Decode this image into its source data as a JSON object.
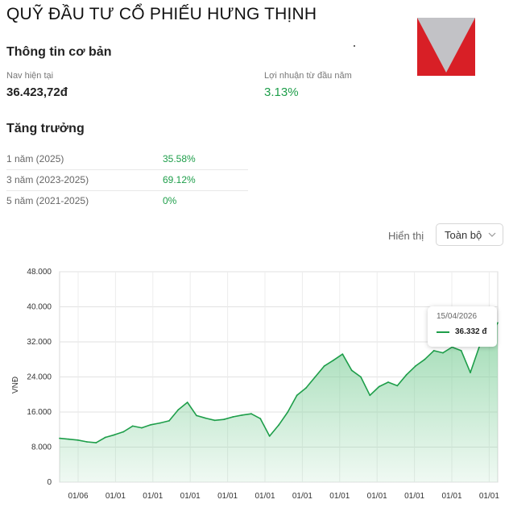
{
  "fund": {
    "title": "QUỸ ĐẦU TƯ CỔ PHIẾU HƯNG THỊNH",
    "logo_colors": {
      "gray": "#c2c2c6",
      "red": "#d81f26"
    }
  },
  "basic": {
    "heading": "Thông tin cơ bản",
    "nav_label": "Nav hiện tại",
    "nav_value": "36.423,72đ",
    "ytd_label": "Lợi nhuận từ đầu năm",
    "ytd_value": "3.13%"
  },
  "growth": {
    "heading": "Tăng trưởng",
    "rows": [
      {
        "label": "1 năm (2025)",
        "value": "35.58%"
      },
      {
        "label": "3 năm (2023-2025)",
        "value": "69.12%"
      },
      {
        "label": "5 năm (2021-2025)",
        "value": "0%"
      }
    ]
  },
  "controls": {
    "show_label": "Hiển thị",
    "range_value": "Toàn bộ",
    "chevron_icon": "chevron-down-icon"
  },
  "colors": {
    "accent": "#1e9e4a",
    "area_fill": "#7fcf9a"
  },
  "chart_data": {
    "type": "area",
    "ylabel": "VNĐ",
    "y_ticks": [
      "48.000",
      "40.000",
      "32.000",
      "24.000",
      "16.000",
      "8.000",
      "0"
    ],
    "ylim": [
      0,
      48000
    ],
    "x_ticks": [
      "01/06",
      "01/01",
      "01/01",
      "01/01",
      "01/01",
      "01/01",
      "01/01",
      "01/01",
      "01/01",
      "01/01",
      "01/01",
      "01/01"
    ],
    "grid": true,
    "series": [
      {
        "values": [
          10000,
          9800,
          9600,
          9200,
          9000,
          10200,
          10800,
          11500,
          12800,
          12400,
          13100,
          13500,
          14000,
          16500,
          18200,
          15200,
          14600,
          14100,
          14300,
          14900,
          15300,
          15600,
          14500,
          10500,
          13000,
          16000,
          19800,
          21500,
          24000,
          26500,
          27800,
          29200,
          25500,
          24000,
          19800,
          21800,
          22800,
          22000,
          24500,
          26500,
          28000,
          30000,
          29500,
          30800,
          30000,
          25000,
          31000,
          33000,
          36332
        ]
      }
    ],
    "tooltip": {
      "date": "15/04/2026",
      "value": "36.332 đ"
    }
  }
}
